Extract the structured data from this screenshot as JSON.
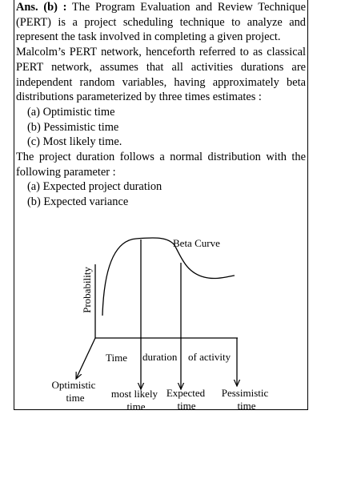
{
  "answer": {
    "label": "Ans. (b) :",
    "paragraphs": [
      "The Program Evaluation and Review Technique (PERT) is a project scheduling technique to analyze and represent the task involved in completing a given project.",
      "Malcolm’s PERT network, henceforth referred to as classical PERT network, assumes that all activities durations are independent random variables, having approximately beta distributions parameterized by three times estimates :"
    ],
    "list1": [
      "(a) Optimistic time",
      "(b) Pessimistic time",
      "(c) Most likely time."
    ],
    "paragraph3": "The project duration follows a normal distribution with the following parameter :",
    "list2": [
      "(a) Expected project duration",
      "(b) Expected variance"
    ]
  },
  "diagram": {
    "curve_label": "Beta Curve",
    "y_label": "Probability",
    "x_labels": [
      "Time",
      "duration",
      "of activity"
    ],
    "optimistic": [
      "Optimistic",
      "time"
    ],
    "most_likely": [
      "most likely",
      "time"
    ],
    "expected": [
      "Expected",
      "time"
    ],
    "pessimistic": [
      "Pessimistic",
      "time"
    ]
  }
}
